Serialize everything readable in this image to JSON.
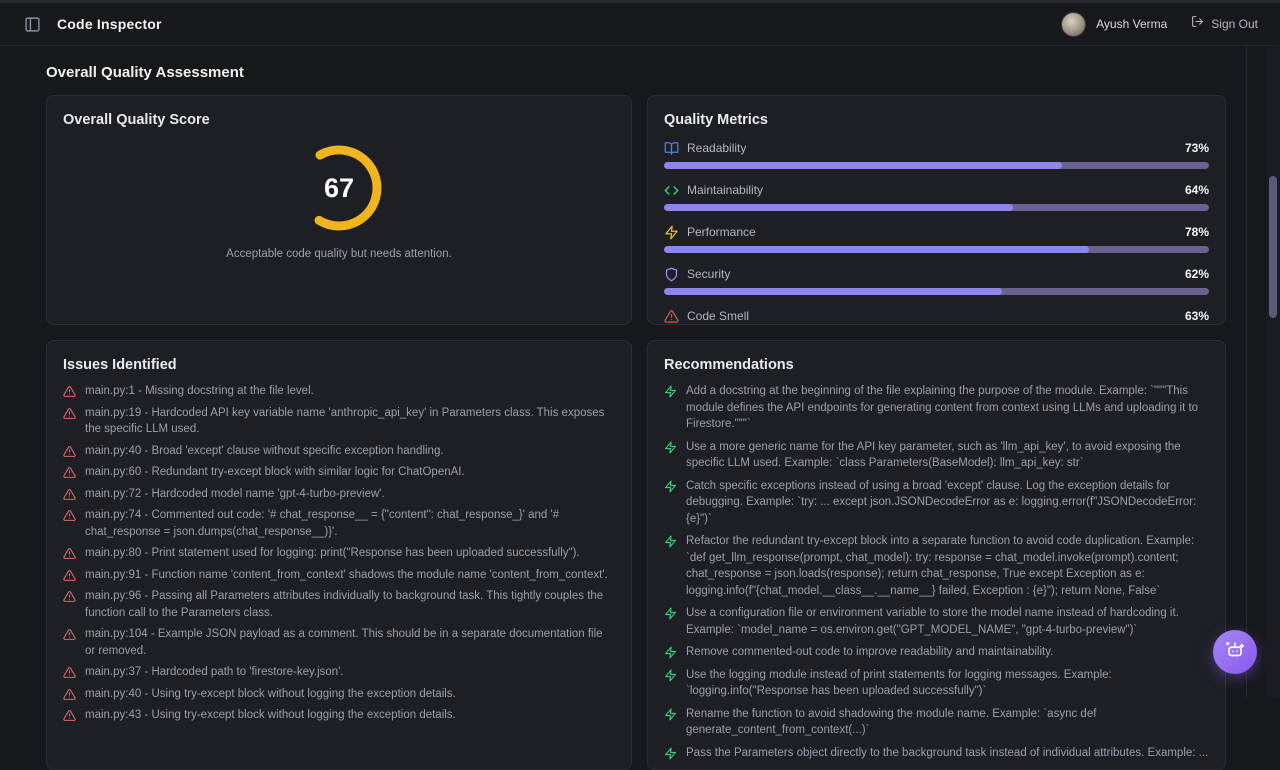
{
  "navbar": {
    "title": "Code Inspector",
    "user_name": "Ayush Verma",
    "sign_out_label": "Sign Out"
  },
  "section_title": "Overall Quality Assessment",
  "score_card": {
    "title": "Overall Quality Score",
    "score": "67",
    "score_value": 67,
    "gauge_color": "#f0b41f",
    "caption": "Acceptable code quality but needs attention."
  },
  "metrics_card": {
    "title": "Quality Metrics",
    "bar_fill_color": "#8d86ec",
    "bar_track_color": "#6a6191",
    "metrics": [
      {
        "label": "Readability",
        "value": 73,
        "percent": "73%",
        "icon": "book-open-icon",
        "icon_color": "#5180e0"
      },
      {
        "label": "Maintainability",
        "value": 64,
        "percent": "64%",
        "icon": "code-icon",
        "icon_color": "#3fd47f"
      },
      {
        "label": "Performance",
        "value": 78,
        "percent": "78%",
        "icon": "zap-icon",
        "icon_color": "#e8c325"
      },
      {
        "label": "Security",
        "value": 62,
        "percent": "62%",
        "icon": "shield-icon",
        "icon_color": "#9f8bef"
      },
      {
        "label": "Code Smell",
        "value": 63,
        "percent": "63%",
        "icon": "alert-triangle-icon",
        "icon_color": "#e05252"
      }
    ]
  },
  "issues_card": {
    "title": "Issues Identified",
    "items": [
      "main.py:1 - Missing docstring at the file level.",
      "main.py:19 - Hardcoded API key variable name 'anthropic_api_key' in Parameters class. This exposes the specific LLM used.",
      "main.py:40 - Broad 'except' clause without specific exception handling.",
      "main.py:60 - Redundant try-except block with similar logic for ChatOpenAI.",
      "main.py:72 - Hardcoded model name 'gpt-4-turbo-preview'.",
      "main.py:74 - Commented out code: '# chat_response__ = {\"content\": chat_response_}' and '# chat_response = json.dumps(chat_response__)}'.",
      "main.py:80 - Print statement used for logging: print(\"Response has been uploaded successfully\").",
      "main.py:91 - Function name 'content_from_context' shadows the module name 'content_from_context'.",
      "main.py:96 - Passing all Parameters attributes individually to background task. This tightly couples the function call to the Parameters class.",
      "main.py:104 - Example JSON payload as a comment. This should be in a separate documentation file or removed.",
      "main.py:37 - Hardcoded path to 'firestore-key.json'.",
      "main.py:40 - Using try-except block without logging the exception details.",
      "main.py:43 - Using try-except block without logging the exception details."
    ]
  },
  "recommendations_card": {
    "title": "Recommendations",
    "items": [
      "Add a docstring at the beginning of the file explaining the purpose of the module. Example: `\"\"\"This module defines the API endpoints for generating content from context using LLMs and uploading it to Firestore.\"\"\"`",
      "Use a more generic name for the API key parameter, such as 'llm_api_key', to avoid exposing the specific LLM used. Example: `class Parameters(BaseModel): llm_api_key: str`",
      "Catch specific exceptions instead of using a broad 'except' clause. Log the exception details for debugging. Example: `try: ... except json.JSONDecodeError as e: logging.error(f\"JSONDecodeError: {e}\")`",
      "Refactor the redundant try-except block into a separate function to avoid code duplication. Example: `def get_llm_response(prompt, chat_model): try: response = chat_model.invoke(prompt).content; chat_response = json.loads(response); return chat_response, True except Exception as e: logging.info(f\"{chat_model.__class__.__name__} failed, Exception : {e}\"); return None, False`",
      "Use a configuration file or environment variable to store the model name instead of hardcoding it. Example: `model_name = os.environ.get(\"GPT_MODEL_NAME\", \"gpt-4-turbo-preview\")`",
      "Remove commented-out code to improve readability and maintainability.",
      "Use the logging module instead of print statements for logging messages. Example: `logging.info(\"Response has been uploaded successfully\")`",
      "Rename the function to avoid shadowing the module name. Example: `async def generate_content_from_context(...)`",
      "Pass the Parameters object directly to the background task instead of individual attributes. Example: ..."
    ]
  },
  "fab": {
    "icon": "bot-icon",
    "color_from": "#a888f5",
    "color_to": "#8559ec"
  }
}
